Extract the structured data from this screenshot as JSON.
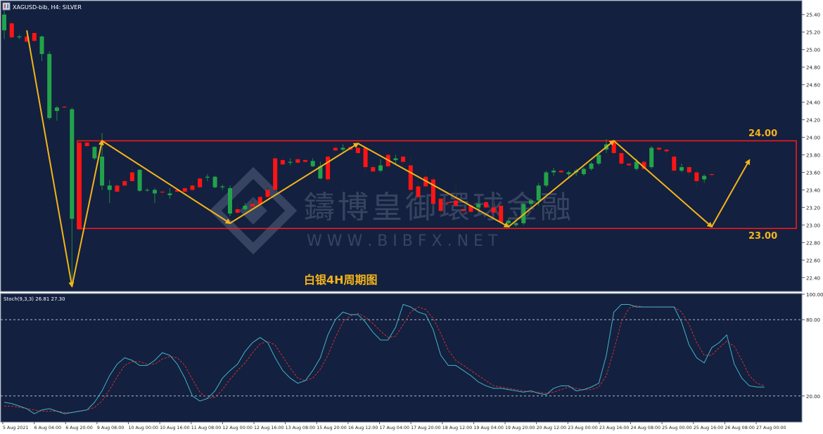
{
  "header": {
    "symbol": "XAGUSD-bib, H4:  SILVER"
  },
  "annotations": {
    "upper_level": "24.00",
    "lower_level": "23.00",
    "chart_caption": "白银4H周期图",
    "watermark_main": "鑄博皇御環球金融",
    "watermark_url": "W W W . B I B F X . N E T"
  },
  "colors": {
    "background": "#13203f",
    "bull": "#22a34a",
    "bear": "#ff1414",
    "range_box": "#ff1a1a",
    "zigzag": "#f4b41a",
    "stoch_main": "#43b4c8",
    "stoch_signal": "#d03030",
    "axis_text": "#222222"
  },
  "chart_data": [
    {
      "type": "candlestick",
      "title": "XAGUSD-bib, H4:  SILVER",
      "ylim": [
        22.25,
        25.55
      ],
      "yticks": [
        22.4,
        22.6,
        22.8,
        23.0,
        23.2,
        23.4,
        23.6,
        23.8,
        24.0,
        24.2,
        24.4,
        24.6,
        24.8,
        25.0,
        25.2,
        25.4
      ],
      "x_labels": [
        "5 Aug 2021",
        "6 Aug 04:00",
        "6 Aug 20:00",
        "9 Aug 08:00",
        "10 Aug 00:00",
        "10 Aug 16:00",
        "11 Aug 08:00",
        "12 Aug 00:00",
        "12 Aug 16:00",
        "13 Aug 08:00",
        "15 Aug 20:00",
        "16 Aug 12:00",
        "17 Aug 04:00",
        "17 Aug 20:00",
        "18 Aug 12:00",
        "19 Aug 04:00",
        "19 Aug 20:00",
        "20 Aug 12:00",
        "23 Aug 00:00",
        "23 Aug 16:00",
        "24 Aug 08:00",
        "25 Aug 00:00",
        "25 Aug 16:00",
        "26 Aug 08:00",
        "27 Aug 00:00"
      ],
      "candles": [
        {
          "o": 25.22,
          "h": 25.46,
          "l": 25.12,
          "c": 25.4
        },
        {
          "o": 25.3,
          "h": 25.32,
          "l": 25.12,
          "c": 25.14
        },
        {
          "o": 25.14,
          "h": 25.17,
          "l": 25.12,
          "c": 25.15
        },
        {
          "o": 25.15,
          "h": 25.2,
          "l": 25.08,
          "c": 25.09
        },
        {
          "o": 25.19,
          "h": 25.2,
          "l": 25.08,
          "c": 25.1
        },
        {
          "o": 24.95,
          "h": 25.16,
          "l": 24.87,
          "c": 25.15
        },
        {
          "o": 24.22,
          "h": 24.98,
          "l": 24.2,
          "c": 24.95
        },
        {
          "o": 24.3,
          "h": 24.36,
          "l": 24.19,
          "c": 24.34
        },
        {
          "o": 24.35,
          "h": 24.36,
          "l": 24.3,
          "c": 24.34
        },
        {
          "o": 23.07,
          "h": 24.34,
          "l": 22.3,
          "c": 24.32
        },
        {
          "o": 23.94,
          "h": 24.0,
          "l": 22.95,
          "c": 22.95
        },
        {
          "o": 23.94,
          "h": 23.96,
          "l": 23.88,
          "c": 23.9
        },
        {
          "o": 23.76,
          "h": 23.9,
          "l": 23.74,
          "c": 23.89
        },
        {
          "o": 23.45,
          "h": 24.05,
          "l": 23.4,
          "c": 23.78
        },
        {
          "o": 23.4,
          "h": 23.51,
          "l": 23.25,
          "c": 23.45
        },
        {
          "o": 23.45,
          "h": 23.48,
          "l": 23.38,
          "c": 23.38
        },
        {
          "o": 23.5,
          "h": 23.56,
          "l": 23.44,
          "c": 23.45
        },
        {
          "o": 23.6,
          "h": 23.68,
          "l": 23.5,
          "c": 23.5
        },
        {
          "o": 23.39,
          "h": 23.63,
          "l": 23.38,
          "c": 23.63
        },
        {
          "o": 23.4,
          "h": 23.42,
          "l": 23.38,
          "c": 23.4
        },
        {
          "o": 23.36,
          "h": 23.42,
          "l": 23.25,
          "c": 23.4
        },
        {
          "o": 23.38,
          "h": 23.4,
          "l": 23.32,
          "c": 23.37
        },
        {
          "o": 23.34,
          "h": 23.42,
          "l": 23.3,
          "c": 23.36
        },
        {
          "o": 23.4,
          "h": 23.42,
          "l": 23.36,
          "c": 23.38
        },
        {
          "o": 23.42,
          "h": 23.44,
          "l": 23.36,
          "c": 23.38
        },
        {
          "o": 23.45,
          "h": 23.5,
          "l": 23.38,
          "c": 23.4
        },
        {
          "o": 23.53,
          "h": 23.56,
          "l": 23.42,
          "c": 23.43
        },
        {
          "o": 23.54,
          "h": 23.58,
          "l": 23.5,
          "c": 23.55
        },
        {
          "o": 23.43,
          "h": 23.56,
          "l": 23.42,
          "c": 23.55
        },
        {
          "o": 23.43,
          "h": 23.46,
          "l": 23.4,
          "c": 23.44
        },
        {
          "o": 23.13,
          "h": 23.45,
          "l": 23.1,
          "c": 23.42
        },
        {
          "o": 23.18,
          "h": 23.25,
          "l": 23.1,
          "c": 23.14
        },
        {
          "o": 23.18,
          "h": 23.25,
          "l": 23.16,
          "c": 23.22
        },
        {
          "o": 23.24,
          "h": 23.3,
          "l": 23.2,
          "c": 23.21
        },
        {
          "o": 23.32,
          "h": 23.34,
          "l": 23.22,
          "c": 23.24
        },
        {
          "o": 23.4,
          "h": 23.43,
          "l": 23.3,
          "c": 23.32
        },
        {
          "o": 23.76,
          "h": 23.82,
          "l": 23.38,
          "c": 23.4
        },
        {
          "o": 23.74,
          "h": 23.78,
          "l": 23.69,
          "c": 23.69
        },
        {
          "o": 23.71,
          "h": 23.76,
          "l": 23.68,
          "c": 23.72
        },
        {
          "o": 23.75,
          "h": 23.77,
          "l": 23.7,
          "c": 23.71
        },
        {
          "o": 23.74,
          "h": 23.77,
          "l": 23.7,
          "c": 23.72
        },
        {
          "o": 23.67,
          "h": 23.76,
          "l": 23.66,
          "c": 23.73
        },
        {
          "o": 23.53,
          "h": 23.72,
          "l": 23.52,
          "c": 23.67
        },
        {
          "o": 23.78,
          "h": 23.8,
          "l": 23.47,
          "c": 23.52
        },
        {
          "o": 23.88,
          "h": 23.92,
          "l": 23.84,
          "c": 23.85
        },
        {
          "o": 23.86,
          "h": 23.92,
          "l": 23.84,
          "c": 23.88
        },
        {
          "o": 23.89,
          "h": 23.94,
          "l": 23.84,
          "c": 23.86
        },
        {
          "o": 23.88,
          "h": 23.92,
          "l": 23.78,
          "c": 23.82
        },
        {
          "o": 23.88,
          "h": 23.9,
          "l": 23.6,
          "c": 23.66
        },
        {
          "o": 23.66,
          "h": 23.7,
          "l": 23.6,
          "c": 23.61
        },
        {
          "o": 23.62,
          "h": 23.75,
          "l": 23.6,
          "c": 23.68
        },
        {
          "o": 23.8,
          "h": 23.82,
          "l": 23.65,
          "c": 23.67
        },
        {
          "o": 23.74,
          "h": 23.8,
          "l": 23.7,
          "c": 23.76
        },
        {
          "o": 23.78,
          "h": 23.8,
          "l": 23.66,
          "c": 23.72
        },
        {
          "o": 23.68,
          "h": 23.78,
          "l": 23.38,
          "c": 23.4
        },
        {
          "o": 23.44,
          "h": 23.5,
          "l": 23.3,
          "c": 23.32
        },
        {
          "o": 23.55,
          "h": 23.62,
          "l": 23.4,
          "c": 23.44
        },
        {
          "o": 23.52,
          "h": 23.55,
          "l": 23.22,
          "c": 23.24
        },
        {
          "o": 23.3,
          "h": 23.32,
          "l": 23.1,
          "c": 23.16
        },
        {
          "o": 23.26,
          "h": 23.3,
          "l": 23.2,
          "c": 23.25
        },
        {
          "o": 23.28,
          "h": 23.48,
          "l": 23.2,
          "c": 23.22
        },
        {
          "o": 23.18,
          "h": 23.24,
          "l": 23.12,
          "c": 23.16
        },
        {
          "o": 23.22,
          "h": 23.26,
          "l": 23.1,
          "c": 23.15
        },
        {
          "o": 23.2,
          "h": 23.26,
          "l": 23.16,
          "c": 23.24
        },
        {
          "o": 23.26,
          "h": 23.3,
          "l": 23.18,
          "c": 23.2
        },
        {
          "o": 23.2,
          "h": 23.28,
          "l": 23.14,
          "c": 23.14
        },
        {
          "o": 23.22,
          "h": 23.25,
          "l": 23.02,
          "c": 23.03
        },
        {
          "o": 23.02,
          "h": 23.08,
          "l": 22.98,
          "c": 23.05
        },
        {
          "o": 23.0,
          "h": 23.05,
          "l": 22.98,
          "c": 23.02
        },
        {
          "o": 23.02,
          "h": 23.25,
          "l": 23.0,
          "c": 23.24
        },
        {
          "o": 23.24,
          "h": 23.3,
          "l": 23.2,
          "c": 23.28
        },
        {
          "o": 23.28,
          "h": 23.48,
          "l": 23.22,
          "c": 23.45
        },
        {
          "o": 23.45,
          "h": 23.62,
          "l": 23.43,
          "c": 23.6
        },
        {
          "o": 23.6,
          "h": 23.65,
          "l": 23.56,
          "c": 23.62
        },
        {
          "o": 23.62,
          "h": 23.64,
          "l": 23.58,
          "c": 23.6
        },
        {
          "o": 23.58,
          "h": 23.62,
          "l": 23.54,
          "c": 23.6
        },
        {
          "o": 23.6,
          "h": 23.64,
          "l": 23.56,
          "c": 23.62
        },
        {
          "o": 23.58,
          "h": 23.66,
          "l": 23.56,
          "c": 23.64
        },
        {
          "o": 23.64,
          "h": 23.72,
          "l": 23.62,
          "c": 23.7
        },
        {
          "o": 23.7,
          "h": 23.82,
          "l": 23.68,
          "c": 23.8
        },
        {
          "o": 23.86,
          "h": 23.98,
          "l": 23.82,
          "c": 23.92
        },
        {
          "o": 23.94,
          "h": 23.96,
          "l": 23.78,
          "c": 23.82
        },
        {
          "o": 23.82,
          "h": 23.84,
          "l": 23.66,
          "c": 23.7
        },
        {
          "o": 23.7,
          "h": 23.72,
          "l": 23.62,
          "c": 23.68
        },
        {
          "o": 23.64,
          "h": 23.76,
          "l": 23.62,
          "c": 23.72
        },
        {
          "o": 23.72,
          "h": 23.76,
          "l": 23.62,
          "c": 23.64
        },
        {
          "o": 23.66,
          "h": 23.9,
          "l": 23.64,
          "c": 23.88
        },
        {
          "o": 23.88,
          "h": 23.9,
          "l": 23.82,
          "c": 23.86
        },
        {
          "o": 23.86,
          "h": 23.88,
          "l": 23.78,
          "c": 23.84
        },
        {
          "o": 23.78,
          "h": 23.82,
          "l": 23.58,
          "c": 23.62
        },
        {
          "o": 23.62,
          "h": 23.7,
          "l": 23.6,
          "c": 23.66
        },
        {
          "o": 23.66,
          "h": 23.7,
          "l": 23.56,
          "c": 23.6
        },
        {
          "o": 23.6,
          "h": 23.64,
          "l": 23.42,
          "c": 23.5
        },
        {
          "o": 23.52,
          "h": 23.58,
          "l": 23.48,
          "c": 23.56
        },
        {
          "o": 23.58,
          "h": 23.6,
          "l": 23.54,
          "c": 23.57
        }
      ],
      "range_box": {
        "top": 23.96,
        "bottom": 22.96
      },
      "zigzag": [
        {
          "i": 3,
          "price": 25.22
        },
        {
          "i": 9,
          "price": 22.3
        },
        {
          "i": 13,
          "price": 23.96
        },
        {
          "i": 30,
          "price": 23.02
        },
        {
          "i": 47,
          "price": 23.93
        },
        {
          "i": 67,
          "price": 22.98
        },
        {
          "i": 81,
          "price": 23.96
        },
        {
          "i": 94,
          "price": 22.98
        },
        {
          "i": 99,
          "price": 23.74
        }
      ]
    },
    {
      "type": "line",
      "title": "Stoch(9,3,3) 26.81 27.30",
      "ylim": [
        0,
        100
      ],
      "yticks": [
        20,
        80,
        100
      ],
      "levels": [
        20,
        80
      ],
      "series": [
        {
          "name": "main",
          "values": [
            15,
            14,
            12,
            10,
            6,
            9,
            10,
            8,
            6,
            7,
            8,
            9,
            15,
            24,
            36,
            45,
            50,
            48,
            44,
            44,
            48,
            54,
            52,
            45,
            34,
            20,
            16,
            18,
            24,
            34,
            40,
            45,
            55,
            62,
            66,
            62,
            50,
            40,
            34,
            30,
            32,
            40,
            50,
            68,
            80,
            86,
            84,
            84,
            78,
            70,
            64,
            64,
            74,
            92,
            90,
            86,
            84,
            72,
            52,
            44,
            44,
            40,
            36,
            31,
            28,
            26,
            26,
            25,
            24,
            23,
            24,
            22,
            21,
            26,
            28,
            28,
            24,
            25,
            27,
            30,
            52,
            86,
            92,
            92,
            90,
            90,
            90,
            90,
            90,
            90,
            78,
            60,
            50,
            46,
            58,
            62,
            68,
            45,
            34,
            28,
            27,
            27
          ]
        },
        {
          "name": "signal",
          "values": [
            12,
            12,
            11,
            10,
            9,
            8,
            8,
            8,
            7,
            7,
            8,
            9,
            11,
            16,
            25,
            35,
            44,
            47,
            47,
            45,
            45,
            49,
            51,
            50,
            44,
            33,
            23,
            18,
            19,
            25,
            33,
            40,
            46,
            54,
            61,
            63,
            60,
            51,
            42,
            34,
            32,
            34,
            41,
            52,
            66,
            78,
            83,
            85,
            82,
            77,
            71,
            66,
            67,
            76,
            86,
            90,
            88,
            81,
            69,
            56,
            48,
            44,
            40,
            36,
            32,
            28,
            27,
            26,
            25,
            24,
            23,
            23,
            22,
            23,
            25,
            27,
            26,
            25,
            25,
            27,
            36,
            56,
            78,
            89,
            91,
            90,
            90,
            90,
            90,
            90,
            86,
            76,
            62,
            52,
            52,
            58,
            63,
            59,
            48,
            36,
            30,
            28
          ]
        }
      ]
    }
  ]
}
